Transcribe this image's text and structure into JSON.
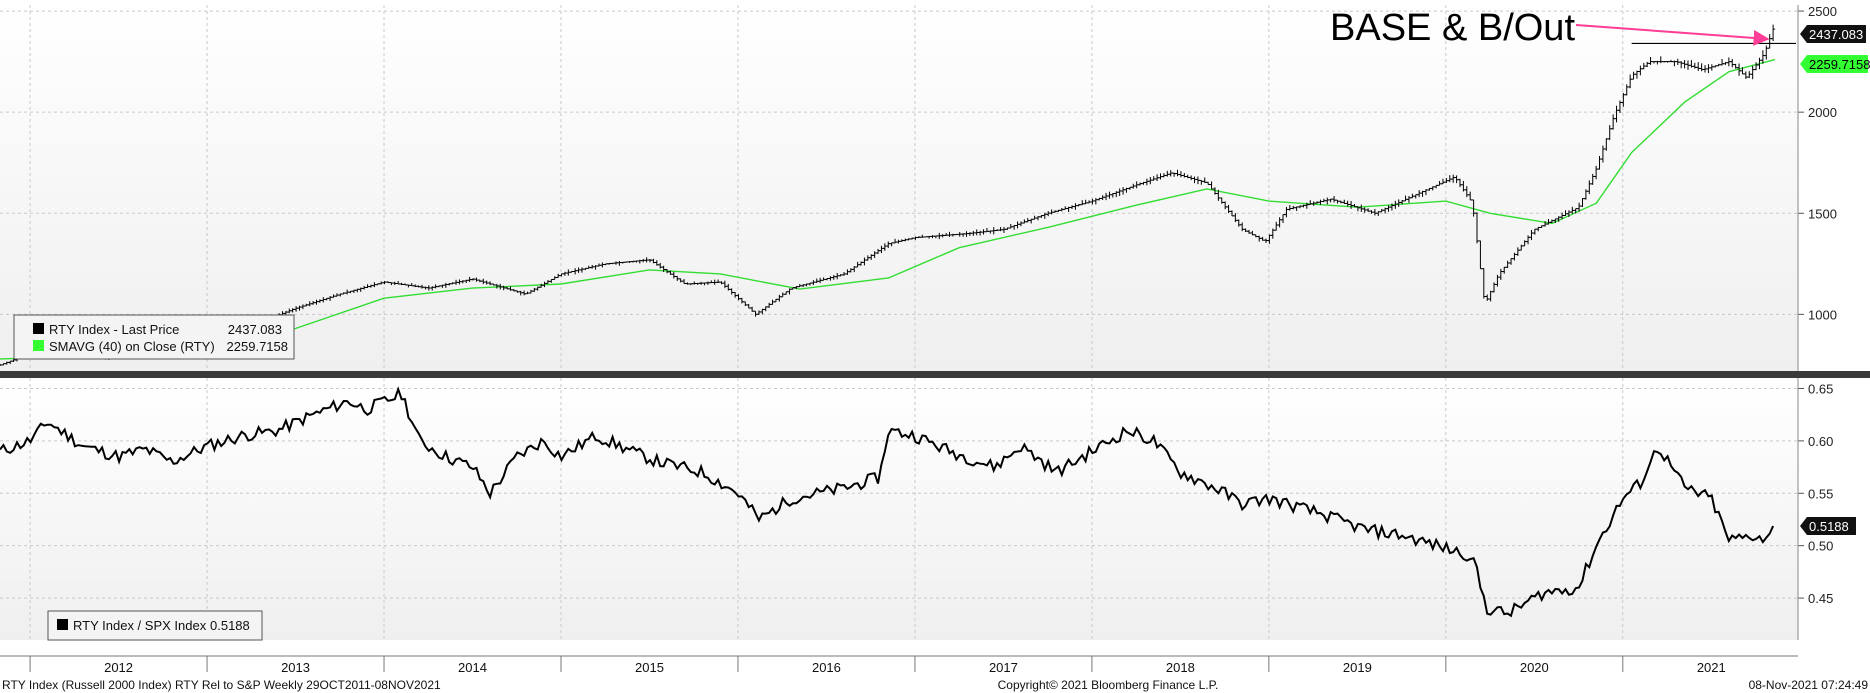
{
  "annotation": {
    "text": "BASE & B/Out",
    "arrow_color": "#ff3d96"
  },
  "colors": {
    "price": "#000000",
    "sma": "#33dd33",
    "tag_dark": "#111111",
    "tag_green": "#33ff33",
    "separator": "#3a3a3a",
    "grid": "#c9c9c9"
  },
  "footer": {
    "left": "RTY Index (Russell 2000 Index) RTY Rel to S&P  Weekly 29OCT2011-08NOV2021",
    "center": "Copyright© 2021 Bloomberg Finance L.P.",
    "right": "08-Nov-2021 07:24:49"
  },
  "chart_data": [
    {
      "type": "ohlc",
      "series": [
        {
          "name": "RTY Index - Last Price",
          "legend_value": "2437.083",
          "tag_value": "2437.083",
          "color": "#000000",
          "points": [
            [
              2011.83,
              750
            ],
            [
              2012.0,
              805
            ],
            [
              2012.2,
              830
            ],
            [
              2012.4,
              780
            ],
            [
              2012.6,
              800
            ],
            [
              2012.85,
              840
            ],
            [
              2013.0,
              880
            ],
            [
              2013.25,
              945
            ],
            [
              2013.5,
              1030
            ],
            [
              2013.75,
              1100
            ],
            [
              2014.0,
              1160
            ],
            [
              2014.25,
              1130
            ],
            [
              2014.5,
              1175
            ],
            [
              2014.8,
              1100
            ],
            [
              2015.0,
              1200
            ],
            [
              2015.25,
              1250
            ],
            [
              2015.5,
              1270
            ],
            [
              2015.7,
              1150
            ],
            [
              2015.9,
              1160
            ],
            [
              2016.1,
              1000
            ],
            [
              2016.3,
              1130
            ],
            [
              2016.6,
              1200
            ],
            [
              2016.85,
              1350
            ],
            [
              2017.0,
              1380
            ],
            [
              2017.3,
              1400
            ],
            [
              2017.5,
              1420
            ],
            [
              2017.75,
              1500
            ],
            [
              2018.0,
              1560
            ],
            [
              2018.25,
              1640
            ],
            [
              2018.45,
              1700
            ],
            [
              2018.65,
              1650
            ],
            [
              2018.85,
              1420
            ],
            [
              2018.98,
              1360
            ],
            [
              2019.1,
              1520
            ],
            [
              2019.35,
              1570
            ],
            [
              2019.6,
              1500
            ],
            [
              2019.85,
              1600
            ],
            [
              2020.05,
              1680
            ],
            [
              2020.15,
              1550
            ],
            [
              2020.22,
              1050
            ],
            [
              2020.3,
              1200
            ],
            [
              2020.5,
              1420
            ],
            [
              2020.75,
              1530
            ],
            [
              2020.85,
              1720
            ],
            [
              2020.95,
              1980
            ],
            [
              2021.05,
              2180
            ],
            [
              2021.15,
              2250
            ],
            [
              2021.3,
              2250
            ],
            [
              2021.45,
              2210
            ],
            [
              2021.6,
              2250
            ],
            [
              2021.7,
              2170
            ],
            [
              2021.8,
              2290
            ],
            [
              2021.86,
              2437
            ]
          ]
        },
        {
          "name": "SMAVG (40)  on Close (RTY)",
          "legend_value": "2259.7158",
          "tag_value": "2259.7158",
          "color": "#33dd33",
          "points": [
            [
              2011.83,
              780
            ],
            [
              2012.25,
              790
            ],
            [
              2012.65,
              795
            ],
            [
              2013.0,
              835
            ],
            [
              2013.5,
              930
            ],
            [
              2014.0,
              1080
            ],
            [
              2014.5,
              1130
            ],
            [
              2015.0,
              1150
            ],
            [
              2015.5,
              1220
            ],
            [
              2015.9,
              1200
            ],
            [
              2016.35,
              1125
            ],
            [
              2016.85,
              1180
            ],
            [
              2017.25,
              1330
            ],
            [
              2017.75,
              1430
            ],
            [
              2018.25,
              1540
            ],
            [
              2018.65,
              1620
            ],
            [
              2019.0,
              1560
            ],
            [
              2019.5,
              1530
            ],
            [
              2020.0,
              1560
            ],
            [
              2020.25,
              1500
            ],
            [
              2020.6,
              1450
            ],
            [
              2020.85,
              1550
            ],
            [
              2021.05,
              1800
            ],
            [
              2021.35,
              2050
            ],
            [
              2021.6,
              2200
            ],
            [
              2021.86,
              2260
            ]
          ]
        }
      ],
      "y_ticks": [
        "1000",
        "1500",
        "2000",
        "2500"
      ],
      "ylim": [
        720,
        2530
      ],
      "hline_value": 2340,
      "grid": true,
      "legend_position": "bottom-left"
    },
    {
      "type": "line",
      "series": [
        {
          "name": "RTY Index / SPX Index",
          "legend_value": "0.5188",
          "tag_value": "0.5188",
          "color": "#000000",
          "points": [
            [
              2011.83,
              0.59
            ],
            [
              2012.0,
              0.6
            ],
            [
              2012.1,
              0.618
            ],
            [
              2012.3,
              0.595
            ],
            [
              2012.5,
              0.585
            ],
            [
              2012.65,
              0.592
            ],
            [
              2012.8,
              0.58
            ],
            [
              2013.0,
              0.595
            ],
            [
              2013.2,
              0.605
            ],
            [
              2013.4,
              0.61
            ],
            [
              2013.6,
              0.625
            ],
            [
              2013.8,
              0.638
            ],
            [
              2013.9,
              0.63
            ],
            [
              2014.1,
              0.645
            ],
            [
              2014.2,
              0.6
            ],
            [
              2014.35,
              0.585
            ],
            [
              2014.5,
              0.575
            ],
            [
              2014.6,
              0.55
            ],
            [
              2014.75,
              0.585
            ],
            [
              2014.9,
              0.6
            ],
            [
              2015.0,
              0.585
            ],
            [
              2015.2,
              0.605
            ],
            [
              2015.4,
              0.59
            ],
            [
              2015.55,
              0.58
            ],
            [
              2015.8,
              0.57
            ],
            [
              2016.0,
              0.55
            ],
            [
              2016.12,
              0.525
            ],
            [
              2016.3,
              0.545
            ],
            [
              2016.6,
              0.555
            ],
            [
              2016.8,
              0.565
            ],
            [
              2016.85,
              0.61
            ],
            [
              2017.0,
              0.605
            ],
            [
              2017.2,
              0.59
            ],
            [
              2017.45,
              0.575
            ],
            [
              2017.6,
              0.595
            ],
            [
              2017.8,
              0.57
            ],
            [
              2018.0,
              0.59
            ],
            [
              2018.2,
              0.61
            ],
            [
              2018.35,
              0.6
            ],
            [
              2018.5,
              0.57
            ],
            [
              2018.7,
              0.555
            ],
            [
              2018.85,
              0.54
            ],
            [
              2019.0,
              0.545
            ],
            [
              2019.3,
              0.53
            ],
            [
              2019.55,
              0.515
            ],
            [
              2019.75,
              0.51
            ],
            [
              2019.95,
              0.5
            ],
            [
              2020.15,
              0.49
            ],
            [
              2020.23,
              0.44
            ],
            [
              2020.35,
              0.435
            ],
            [
              2020.55,
              0.455
            ],
            [
              2020.75,
              0.46
            ],
            [
              2020.85,
              0.5
            ],
            [
              2021.0,
              0.545
            ],
            [
              2021.1,
              0.56
            ],
            [
              2021.2,
              0.595
            ],
            [
              2021.35,
              0.555
            ],
            [
              2021.5,
              0.545
            ],
            [
              2021.6,
              0.505
            ],
            [
              2021.75,
              0.51
            ],
            [
              2021.82,
              0.505
            ],
            [
              2021.86,
              0.5188
            ]
          ]
        }
      ],
      "y_ticks": [
        "0.45",
        "0.50",
        "0.55",
        "0.60",
        "0.65"
      ],
      "ylim": [
        0.41,
        0.66
      ],
      "grid": true,
      "legend_position": "bottom-left"
    }
  ],
  "x_axis": {
    "years": [
      "2012",
      "2013",
      "2014",
      "2015",
      "2016",
      "2017",
      "2018",
      "2019",
      "2020",
      "2021"
    ],
    "xlim": [
      2011.83,
      2021.99
    ]
  }
}
